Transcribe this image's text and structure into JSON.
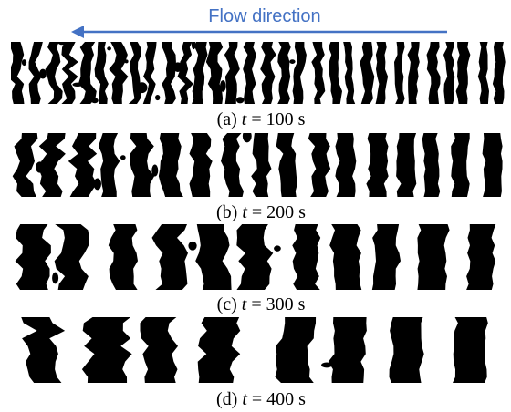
{
  "header": {
    "title": "Flow direction"
  },
  "panels": [
    {
      "label": "(a)",
      "variable": "t",
      "rest": "= 100 s"
    },
    {
      "label": "(b)",
      "variable": "t",
      "rest": "= 200 s"
    },
    {
      "label": "(c)",
      "variable": "t",
      "rest": "= 300 s"
    },
    {
      "label": "(d)",
      "variable": "t",
      "rest": "= 400 s"
    }
  ]
}
